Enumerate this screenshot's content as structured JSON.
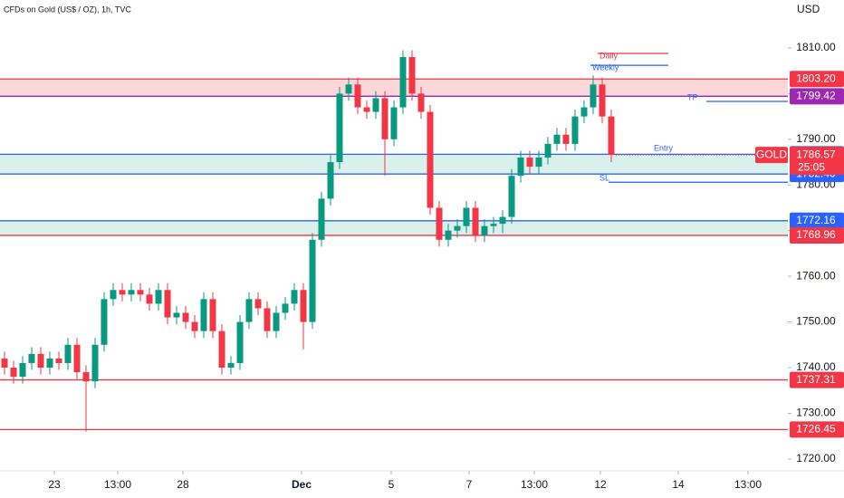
{
  "chart_data": {
    "type": "candlestick",
    "title": "CFDs on Gold (US$ / OZ), 1h, TVC",
    "currency": "USD",
    "up_color": "#089981",
    "down_color": "#f23645",
    "open": [
      1742,
      1740,
      1738,
      1741,
      1743,
      1740,
      1742,
      1741,
      1745,
      1739,
      1737,
      1745,
      1755,
      1757,
      1756,
      1757,
      1756,
      1754,
      1757,
      1751,
      1752,
      1750,
      1748,
      1755,
      1748,
      1740,
      1741,
      1750,
      1755,
      1753,
      1748,
      1752,
      1754,
      1757,
      1750,
      1768,
      1777,
      1785,
      1800,
      1802,
      1797,
      1796,
      1799,
      1790,
      1797,
      1808,
      1800,
      1796,
      1775,
      1768,
      1770,
      1771,
      1775,
      1769,
      1771,
      1771.5,
      1773,
      1782,
      1786,
      1784,
      1786,
      1789,
      1791,
      1789,
      1795,
      1797,
      1802,
      1795
    ],
    "high": [
      1743.5,
      1741.5,
      1742.5,
      1744.5,
      1744.5,
      1743.5,
      1743.5,
      1746.5,
      1746.5,
      1740.5,
      1746.5,
      1756.5,
      1758.5,
      1758.5,
      1758.5,
      1758.5,
      1757.5,
      1758.5,
      1758.5,
      1753.5,
      1753.5,
      1751.5,
      1756.5,
      1756.5,
      1749.5,
      1742.5,
      1751.5,
      1756.5,
      1756.5,
      1754.5,
      1753.5,
      1755.5,
      1758.5,
      1758.5,
      1769.5,
      1778.5,
      1786.5,
      1801.5,
      1803.5,
      1803.5,
      1798.5,
      1800.5,
      1800.5,
      1798.5,
      1809.5,
      1809.5,
      1801.5,
      1797.5,
      1776.5,
      1771.5,
      1772.5,
      1776.5,
      1776.5,
      1772.5,
      1773,
      1774.5,
      1783.5,
      1787.5,
      1787.5,
      1787.5,
      1790.5,
      1792.5,
      1792.5,
      1796.5,
      1798.5,
      1804,
      1803.5,
      1796.5
    ],
    "low": [
      1738.5,
      1736.5,
      1736.5,
      1739.5,
      1738.5,
      1738.5,
      1739.5,
      1739.5,
      1737.5,
      1726,
      1735.5,
      1743.5,
      1753.5,
      1754.5,
      1754.5,
      1754.5,
      1752.5,
      1752.5,
      1749.5,
      1749.5,
      1748.5,
      1746.5,
      1746.5,
      1746.5,
      1738.5,
      1738.5,
      1739.5,
      1748.5,
      1751.5,
      1746.5,
      1746.5,
      1750.5,
      1752.5,
      1744,
      1748.5,
      1766.5,
      1775.5,
      1783.5,
      1798.5,
      1795.5,
      1794.5,
      1794.5,
      1782,
      1788.5,
      1795.5,
      1798.5,
      1794.5,
      1773.5,
      1766.5,
      1766.5,
      1768.5,
      1769.5,
      1767.5,
      1767.5,
      1769.5,
      1769.5,
      1771.5,
      1780.5,
      1782.5,
      1782.5,
      1784.5,
      1787.5,
      1787.5,
      1787.5,
      1793.5,
      1795.5,
      1793.5,
      1785
    ],
    "close": [
      1740,
      1738,
      1741,
      1743,
      1740,
      1742,
      1741,
      1745,
      1739,
      1737,
      1745,
      1755,
      1757,
      1756,
      1757,
      1756,
      1754,
      1757,
      1751,
      1752,
      1750,
      1748,
      1755,
      1748,
      1740,
      1741,
      1750,
      1755,
      1753,
      1748,
      1752,
      1754,
      1757,
      1750,
      1768,
      1777,
      1785,
      1800,
      1802,
      1797,
      1796,
      1799,
      1790,
      1797,
      1808,
      1800,
      1796,
      1775,
      1768,
      1770,
      1771,
      1775,
      1769,
      1771,
      1771.5,
      1773,
      1782,
      1786,
      1784,
      1786,
      1789,
      1791,
      1789,
      1795,
      1797,
      1802,
      1795,
      1786.57
    ],
    "xlim": [
      -0.5,
      86.5
    ],
    "xticks": [
      {
        "value": 5.5,
        "label": "23"
      },
      {
        "value": 12.5,
        "label": "13:00"
      },
      {
        "value": 19.7,
        "label": "28"
      },
      {
        "value": 32.8,
        "label": "Dec"
      },
      {
        "value": 42.7,
        "label": "5"
      },
      {
        "value": 51.3,
        "label": "7"
      },
      {
        "value": 58.5,
        "label": "13:00"
      },
      {
        "value": 65.8,
        "label": "12"
      },
      {
        "value": 74.4,
        "label": "14"
      },
      {
        "value": 82.1,
        "label": "13:00"
      }
    ],
    "ylim": [
      1717.4,
      1820.5
    ],
    "yticks": [
      {
        "value": 1720,
        "label": "1720.00"
      },
      {
        "value": 1730,
        "label": "1730.00"
      },
      {
        "value": 1740,
        "label": "1740.00"
      },
      {
        "value": 1750,
        "label": "1750.00"
      },
      {
        "value": 1760,
        "label": "1760.00"
      },
      {
        "value": 1770,
        "label": "1770.00"
      },
      {
        "value": 1780,
        "label": "1780.00"
      },
      {
        "value": 1790,
        "label": "1790.00"
      },
      {
        "value": 1800,
        "label": "1800.00"
      },
      {
        "value": 1810,
        "label": "1810.00"
      }
    ],
    "levels": [
      {
        "value": 1803.2,
        "label": "1803.20",
        "color": "#f23645",
        "fill": "rgba(242,54,69,0.2)"
      },
      {
        "value": 1799.42,
        "label": "1799.42",
        "color": "#9c27b0"
      },
      {
        "value": 1786.72,
        "label": "1786.72",
        "color": "#2962ff",
        "fill": "rgba(8,153,129,0.15)"
      },
      {
        "value": 1782.4,
        "label": "1782.40",
        "color": "#2962ff"
      },
      {
        "value": 1772.16,
        "label": "1772.16",
        "color": "#2962ff",
        "fill": "rgba(8,153,129,0.15)"
      },
      {
        "value": 1768.96,
        "label": "1768.96",
        "color": "#f23645"
      },
      {
        "value": 1737.31,
        "label": "1737.31",
        "color": "#f23645"
      },
      {
        "value": 1726.45,
        "label": "1726.45",
        "color": "#f23645"
      }
    ],
    "annotations": [
      {
        "text": "Daily",
        "value": 1808.8,
        "color": "#f23645",
        "line": true
      },
      {
        "text": "Weekly",
        "value": 1806.2,
        "color": "#2962ff",
        "line": true
      },
      {
        "text": "TP",
        "value": 1798.3,
        "color": "#2962ff",
        "line": true
      },
      {
        "text": "Entry",
        "value": 1787.2,
        "color": "#2962ff",
        "line": false
      },
      {
        "text": "SL",
        "value": 1780.6,
        "color": "#2962ff",
        "line": true
      }
    ],
    "last_price": {
      "symbol": "GOLD",
      "value": 1786.57,
      "countdown": "25:05",
      "color": "#f23645"
    }
  }
}
